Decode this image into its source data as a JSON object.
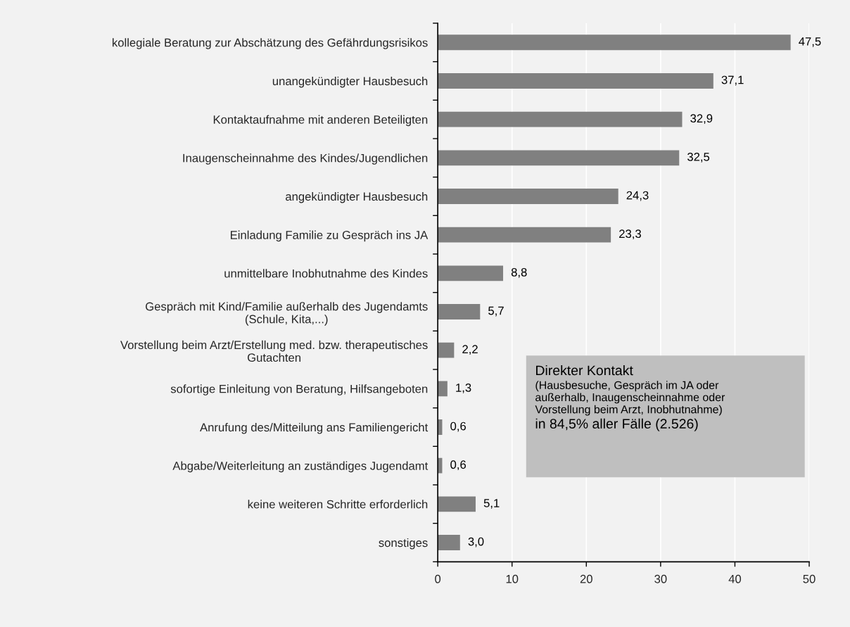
{
  "chart_data": {
    "type": "bar",
    "orientation": "horizontal",
    "categories": [
      "kollegiale Beratung zur Abschätzung des Gefährdungsrisikos",
      "unangekündigter Hausbesuch",
      "Kontaktaufnahme mit anderen Beteiligten",
      "Inaugenscheinnahme des Kindes/Jugendlichen",
      "angekündigter Hausbesuch",
      "Einladung Familie zu Gespräch ins JA",
      "unmittelbare Inobhutnahme des Kindes",
      "Gespräch mit Kind/Familie außerhalb des Jugendamts\n(Schule, Kita,...)",
      "Vorstellung beim Arzt/Erstellung med. bzw. therapeutisches\nGutachten",
      "sofortige Einleitung von Beratung, Hilfsangeboten",
      "Anrufung des/Mitteilung ans Familiengericht",
      "Abgabe/Weiterleitung an zuständiges Jugendamt",
      "keine weiteren Schritte erforderlich",
      "sonstiges"
    ],
    "values": [
      47.5,
      37.1,
      32.9,
      32.5,
      24.3,
      23.3,
      8.8,
      5.7,
      2.2,
      1.3,
      0.6,
      0.6,
      5.1,
      3.0
    ],
    "value_labels": [
      "47,5",
      "37,1",
      "32,9",
      "32,5",
      "24,3",
      "23,3",
      "8,8",
      "5,7",
      "2,2",
      "1,3",
      "0,6",
      "0,6",
      "5,1",
      "3,0"
    ],
    "color": "#808080",
    "xlim": [
      0,
      50
    ],
    "xticks": [
      0,
      10,
      20,
      30,
      40,
      50
    ],
    "grid": "x",
    "annotations": [
      "Direkter Kontakt",
      "(Hausbesuche, Gespräch im JA oder\naußerhalb, Inaugenscheinnahme oder\nVorstellung beim Arzt, Inobhutnahme)",
      "in 84,5% aller Fälle (2.526)"
    ]
  }
}
